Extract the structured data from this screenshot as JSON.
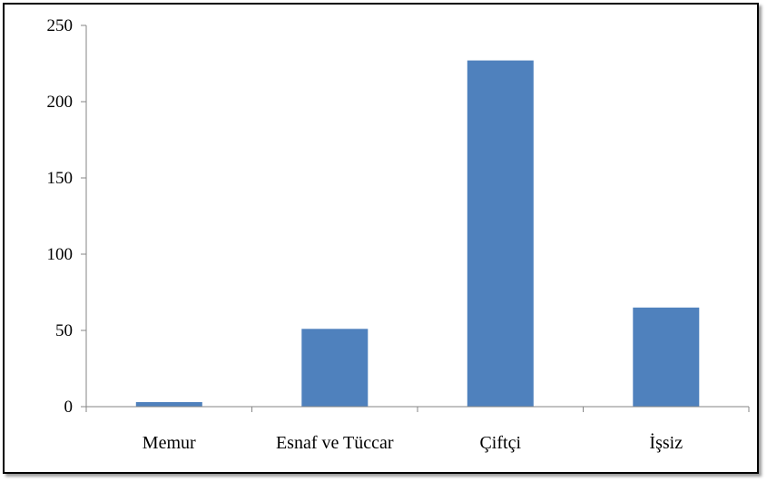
{
  "chart_data": {
    "type": "bar",
    "categories": [
      "Memur",
      "Esnaf ve Tüccar",
      "Çiftçi",
      "İşsiz"
    ],
    "values": [
      3,
      51,
      227,
      65
    ],
    "ylim": [
      0,
      250
    ],
    "yticks": [
      0,
      50,
      100,
      150,
      200,
      250
    ],
    "grid": false,
    "legend": "none",
    "bar_color": "#4f81bd",
    "axis_color": "#868686",
    "border_color": "#000000"
  }
}
